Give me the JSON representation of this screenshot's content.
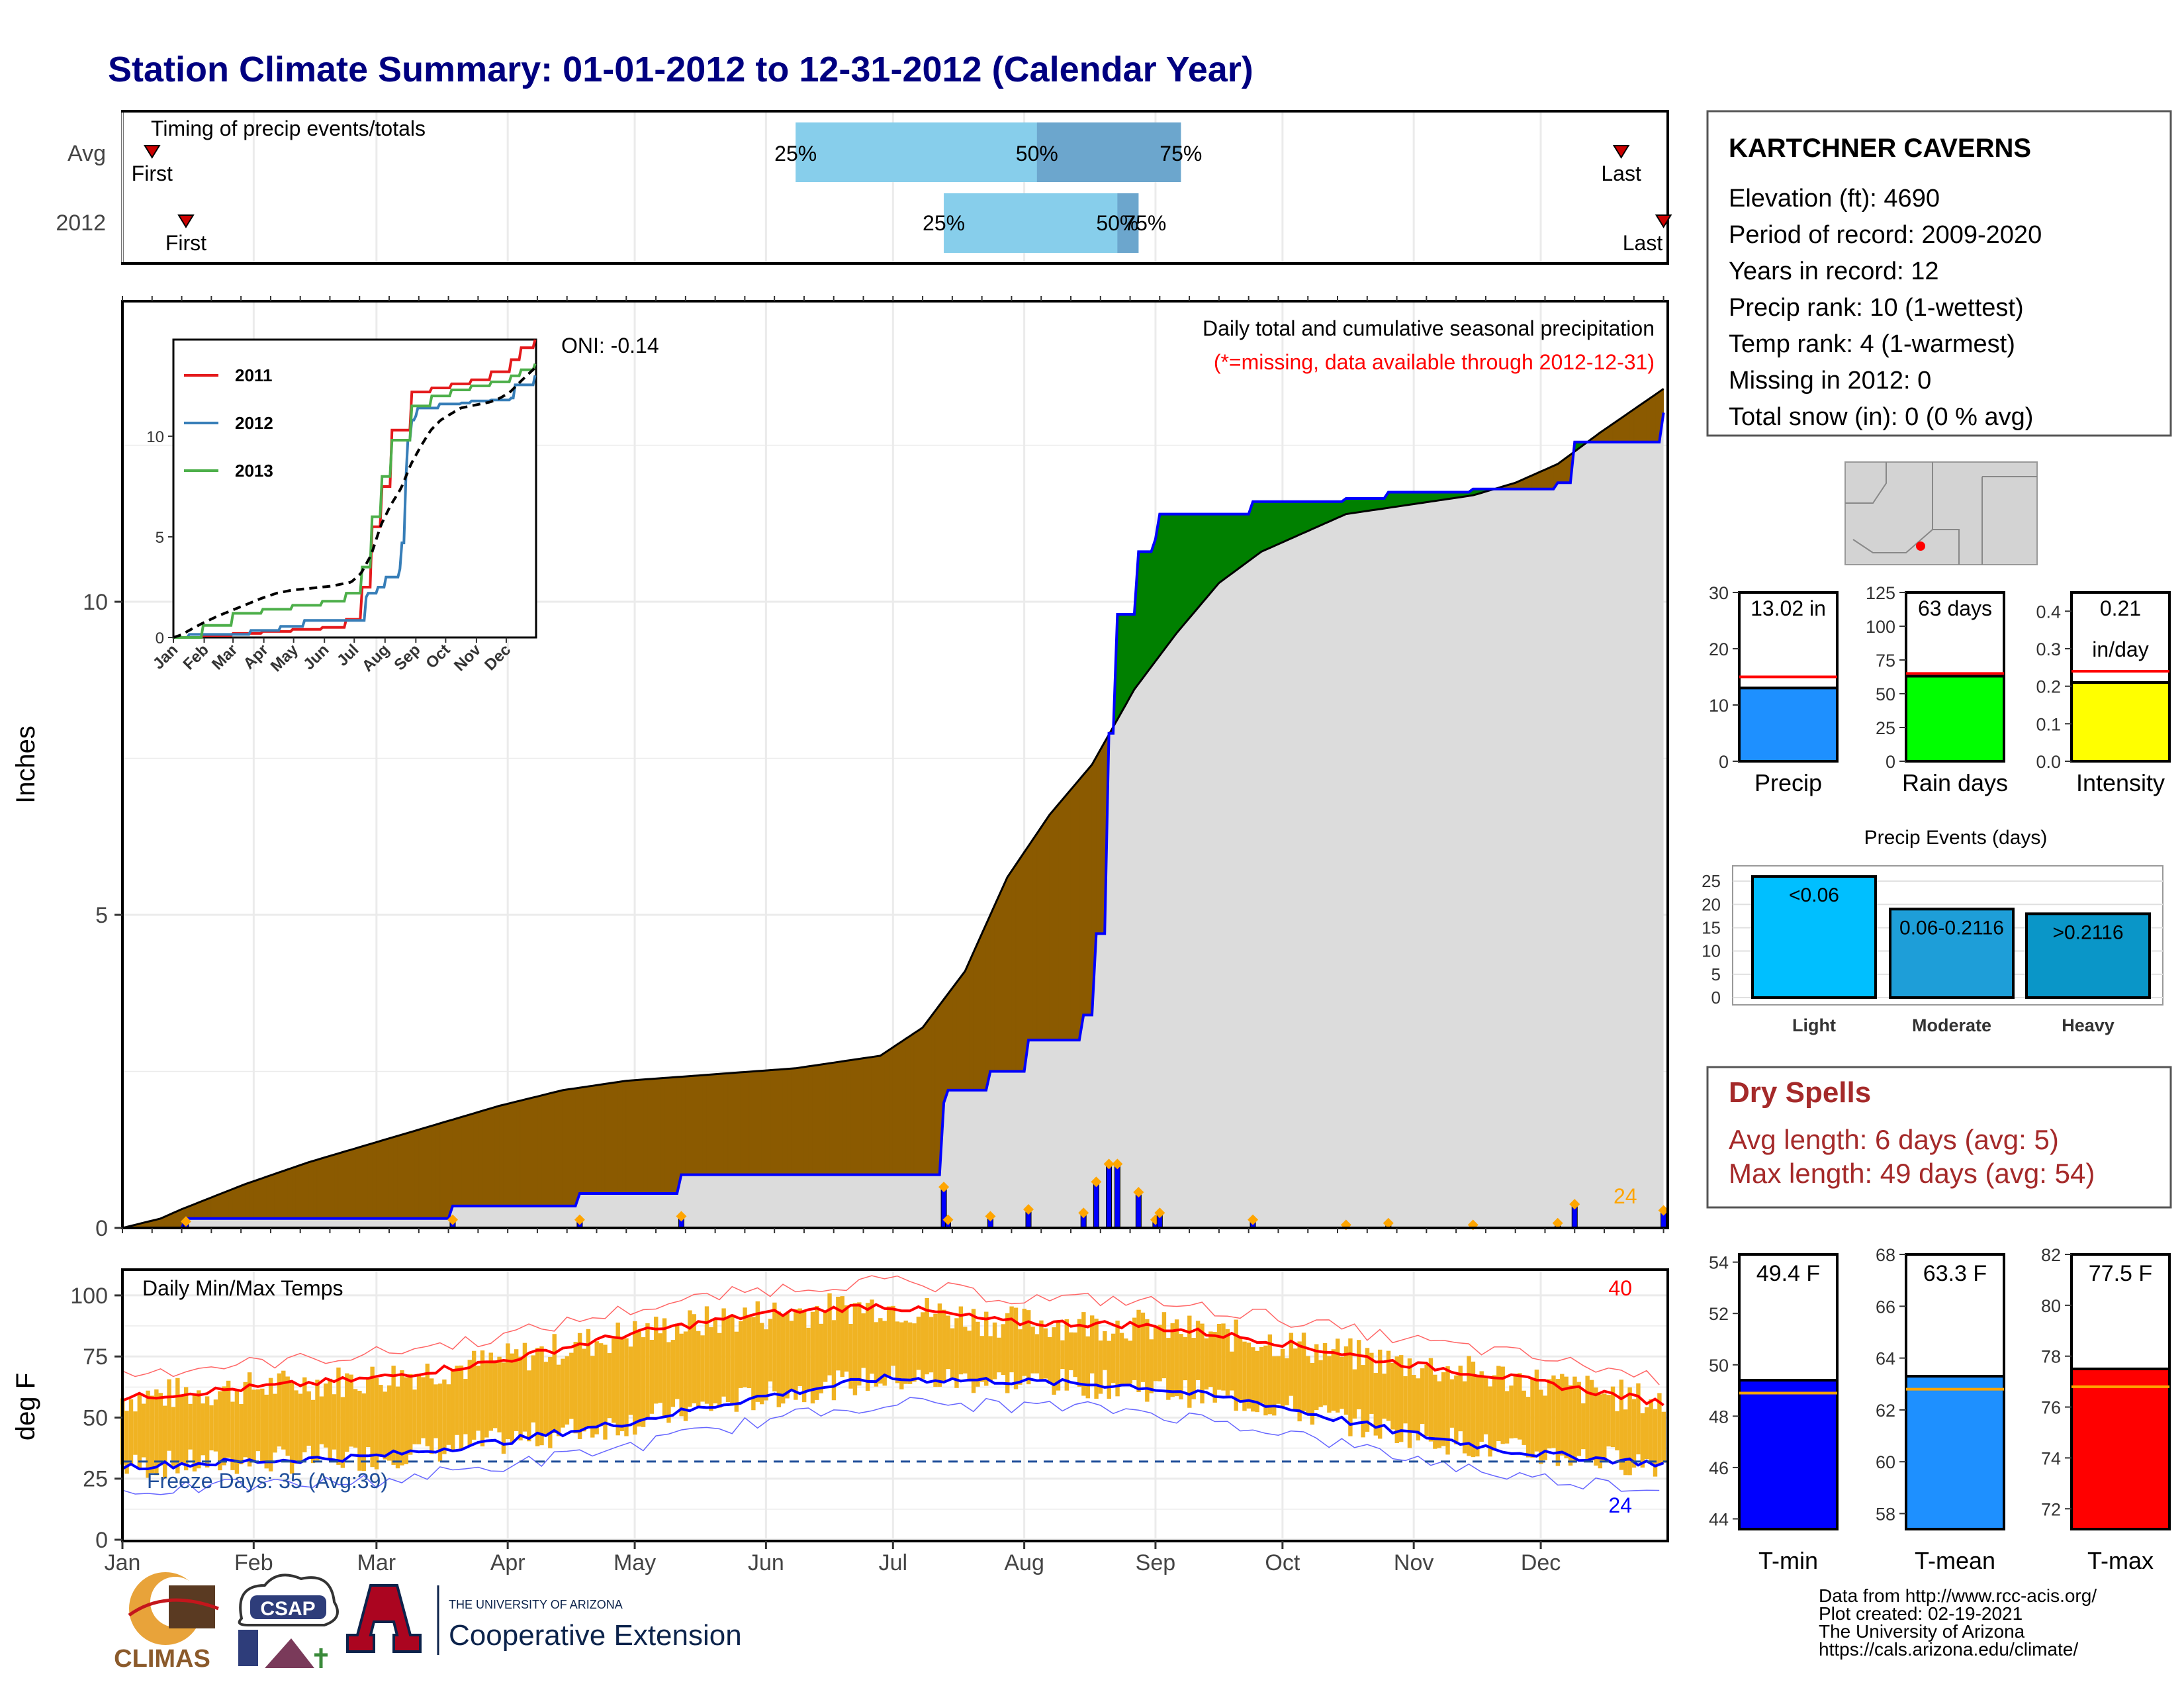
{
  "title": "Station Climate Summary: 01-01-2012 to 12-31-2012 (Calendar Year)",
  "colors": {
    "title": "#000080",
    "p25_75": "#87CEEB",
    "p50_75": "#6CA6CD",
    "precip_above": "#006400",
    "precip_above_fill": "#008000",
    "precip_below": "#8B5A00",
    "current_fill": "#DCDCDC",
    "current_line": "#0000FF",
    "bar_fill": "#0000FF",
    "marker": "#FFA500",
    "temp_band": "#F0B323",
    "tmax_line": "#FF0000",
    "tmin_line": "#0000FF",
    "dry_text": "#A52A2A"
  },
  "timing": {
    "label": "Timing of precip events/totals",
    "rows": [
      {
        "name": "Avg",
        "first_label": "First",
        "last_label": "Last",
        "p25_label": "25%",
        "p50_label": "50%",
        "p75_label": "75%",
        "first_doy": 8,
        "last_doy": 355,
        "p25": 160,
        "p50": 217,
        "p75": 251
      },
      {
        "name": "2012",
        "first_label": "First",
        "last_label": "Last",
        "p25_label": "25%",
        "p50_label": "50%",
        "p75_label": "75%",
        "first_doy": 16,
        "last_doy": 365,
        "p25": 195,
        "p50": 236,
        "p75": 241
      }
    ]
  },
  "precip_panel": {
    "ylabel": "Inches",
    "yticks": [
      "0",
      "5",
      "10"
    ],
    "title": "Daily total and cumulative seasonal precipitation",
    "subtitle": "(*=missing, data available through 2012-12-31)",
    "oni": "ONI: -0.14",
    "marker_count": "24"
  },
  "inset": {
    "legend": [
      "2011",
      "2012",
      "2013"
    ],
    "legend_colors": [
      "#E41A1C",
      "#377EB8",
      "#4DAF4A"
    ],
    "yticks": [
      "0",
      "5",
      "10"
    ],
    "xticks": [
      "Jan",
      "Feb",
      "Mar",
      "Apr",
      "May",
      "Jun",
      "Jul",
      "Aug",
      "Sep",
      "Oct",
      "Nov",
      "Dec"
    ]
  },
  "temp_panel": {
    "title": "Daily Min/Max Temps",
    "ylabel": "deg F",
    "yticks": [
      "0",
      "25",
      "50",
      "75",
      "100"
    ],
    "freeze_text": "Freeze Days: 35 (Avg:39)",
    "tmax_count": "40",
    "tmin_count": "24"
  },
  "months": [
    "Jan",
    "Feb",
    "Mar",
    "Apr",
    "May",
    "Jun",
    "Jul",
    "Aug",
    "Sep",
    "Oct",
    "Nov",
    "Dec"
  ],
  "station": {
    "name": "KARTCHNER CAVERNS",
    "lines": [
      "Elevation (ft): 4690",
      "Period of record: 2009-2020",
      "Years in record: 12",
      "Precip rank: 10 (1-wettest)",
      "Temp rank: 4 (1-warmest)",
      "Missing in 2012: 0",
      "Total snow (in): 0 (0 % avg)"
    ]
  },
  "summary_bars": [
    {
      "name": "Precip",
      "label": "13.02 in",
      "label2": "",
      "value": 13.02,
      "avg": 15,
      "ymax": 30,
      "ticks": [
        "0",
        "10",
        "20",
        "30"
      ],
      "color": "#1E90FF"
    },
    {
      "name": "Rain days",
      "label": "63 days",
      "label2": "",
      "value": 63,
      "avg": 65,
      "ymax": 125,
      "ticks": [
        "0",
        "25",
        "50",
        "75",
        "100",
        "125"
      ],
      "color": "#00FF00"
    },
    {
      "name": "Intensity",
      "label": "0.21",
      "label2": "in/day",
      "value": 0.21,
      "avg": 0.24,
      "ymax": 0.45,
      "ticks": [
        "0.0",
        "0.1",
        "0.2",
        "0.3",
        "0.4"
      ],
      "color": "#FFFF00"
    }
  ],
  "events": {
    "title": "Precip Events (days)",
    "categories": [
      "Light",
      "Moderate",
      "Heavy"
    ],
    "bar_labels": [
      "<0.06",
      "0.06-0.2116",
      ">0.2116"
    ],
    "values": [
      26,
      19,
      18
    ],
    "ticks": [
      "0",
      "5",
      "10",
      "15",
      "20",
      "25"
    ],
    "colors": [
      "#00BFFF",
      "#1E9ED8",
      "#0A96C8"
    ]
  },
  "dry_spells": {
    "title": "Dry Spells",
    "avg": "Avg length: 6 days (avg: 5)",
    "max": "Max length: 49 days (avg: 54)"
  },
  "temp_bars": [
    {
      "name": "T-min",
      "label": "49.4 F",
      "value": 49.4,
      "avg": 48.9,
      "ymin": 43.6,
      "ymax": 54.3,
      "ticks": [
        "44",
        "46",
        "48",
        "50",
        "52",
        "54"
      ],
      "color": "#0000FF"
    },
    {
      "name": "T-mean",
      "label": "63.3 F",
      "value": 63.3,
      "avg": 62.8,
      "ymin": 57.4,
      "ymax": 68.0,
      "ticks": [
        "58",
        "60",
        "62",
        "64",
        "66",
        "68"
      ],
      "color": "#1E90FF"
    },
    {
      "name": "T-max",
      "label": "77.5 F",
      "value": 77.5,
      "avg": 76.8,
      "ymin": 71.2,
      "ymax": 82.0,
      "ticks": [
        "72",
        "74",
        "76",
        "78",
        "80",
        "82"
      ],
      "color": "#FF0000"
    }
  ],
  "footer": {
    "lines": [
      "Data from http://www.rcc-acis.org/",
      "Plot created: 02-19-2021",
      "The University of Arizona",
      "https://cals.arizona.edu/climate/"
    ]
  },
  "logos": {
    "climas": "CLIMAS",
    "csap": "CSAP",
    "ua_line1": "THE UNIVERSITY OF ARIZONA",
    "ua_line2": "Cooperative Extension"
  },
  "chart_data": [
    {
      "type": "area",
      "title": "Daily total and cumulative seasonal precipitation",
      "ylabel": "Inches",
      "ylim": [
        0,
        14.8
      ],
      "x_unit": "day of year",
      "series": [
        {
          "name": "",
          "x": [
            1,
            10,
            15,
            30,
            45,
            60,
            75,
            90,
            105,
            120,
            140,
            160,
            180,
            190,
            200,
            210,
            220,
            230,
            240,
            250,
            260,
            270,
            280,
            290,
            300,
            310,
            320,
            330,
            340,
            350,
            365
          ],
          "values": [
            0.0,
            0.15,
            0.3,
            0.7,
            1.05,
            1.35,
            1.65,
            1.95,
            2.2,
            2.35,
            2.45,
            2.55,
            2.75,
            3.2,
            4.1,
            5.6,
            6.6,
            7.4,
            8.6,
            9.5,
            10.3,
            10.8,
            11.1,
            11.4,
            11.5,
            11.6,
            11.7,
            11.9,
            12.2,
            12.7,
            13.4
          ]
        },
        {
          "name": "",
          "x": [
            1,
            14,
            16,
            47,
            78,
            79,
            108,
            109,
            132,
            133,
            195,
            196,
            205,
            206,
            214,
            215,
            228,
            231,
            234,
            236,
            241,
            245,
            246,
            265,
            268,
            270,
            290,
            300,
            320,
            340,
            344,
            365
          ],
          "values": [
            0.0,
            0.0,
            0.15,
            0.15,
            0.15,
            0.35,
            0.35,
            0.55,
            0.55,
            0.85,
            2.0,
            2.2,
            2.2,
            2.5,
            2.5,
            3.0,
            3.4,
            4.7,
            7.9,
            9.8,
            10.8,
            11.0,
            11.4,
            11.4,
            11.6,
            11.6,
            11.65,
            11.75,
            11.8,
            11.9,
            12.55,
            13.02
          ]
        }
      ]
    },
    {
      "type": "line",
      "title": "Daily Min/Max Temps",
      "ylabel": "deg F",
      "ylim": [
        0,
        110
      ],
      "x_unit": "day of year",
      "series": [
        {
          "name": "",
          "x": [
            1,
            30,
            60,
            90,
            120,
            150,
            180,
            210,
            240,
            270,
            300,
            330,
            365
          ],
          "values": [
            58,
            62,
            66,
            73,
            84,
            92,
            96,
            89,
            88,
            82,
            73,
            66,
            56
          ]
        },
        {
          "name": "",
          "x": [
            1,
            30,
            60,
            90,
            120,
            150,
            180,
            210,
            240,
            270,
            300,
            330,
            365
          ],
          "values": [
            30,
            32,
            34,
            40,
            48,
            58,
            66,
            65,
            63,
            56,
            45,
            36,
            31
          ]
        }
      ]
    }
  ]
}
